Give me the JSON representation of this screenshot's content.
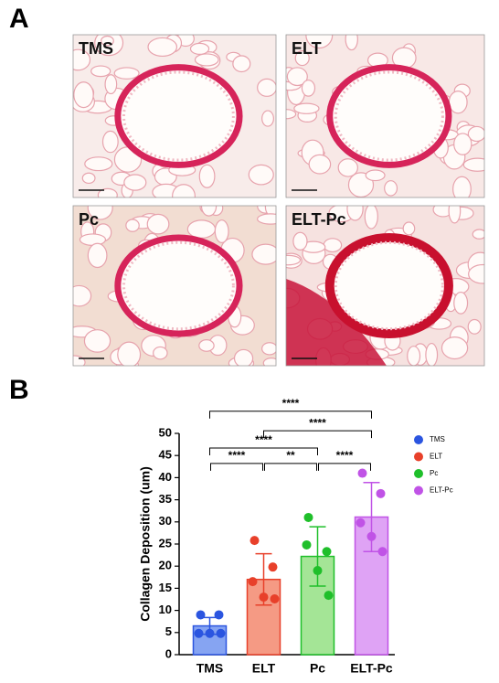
{
  "panel_labels": [
    "A",
    "B"
  ],
  "image_labels": [
    "TMS",
    "ELT",
    "Pc",
    "ELT-Pc"
  ],
  "chart_data": {
    "type": "bar",
    "ylabel": "Collagen Deposition (um)",
    "categories": [
      "TMS",
      "ELT",
      "Pc",
      "ELT-Pc"
    ],
    "values": [
      6.5,
      17,
      22.2,
      31.1
    ],
    "errors": [
      1.9,
      5.8,
      6.7,
      7.8
    ],
    "points": [
      [
        9,
        9,
        4.8,
        4.8,
        4.8
      ],
      [
        25.8,
        19.8,
        16.5,
        13,
        12.6
      ],
      [
        31,
        23.3,
        24.8,
        19,
        13.4
      ],
      [
        41,
        36.4,
        29.8,
        26.7,
        23.3
      ]
    ],
    "colors": [
      "#2b55e0",
      "#e8402a",
      "#1fbf2a",
      "#c053e6"
    ],
    "fill_colors": [
      "#86a4f2",
      "#f59a84",
      "#a4e596",
      "#dfa3f5"
    ],
    "ylim": [
      0,
      50
    ],
    "yticks": [
      0,
      5,
      10,
      15,
      20,
      25,
      30,
      35,
      40,
      45,
      50
    ],
    "comparisons": [
      {
        "groups": [
          0,
          3
        ],
        "label": "****",
        "y": 55
      },
      {
        "groups": [
          1,
          3
        ],
        "label": "****",
        "y": 50.6
      },
      {
        "groups": [
          0,
          2
        ],
        "label": "****",
        "y": 46.7
      },
      {
        "groups": [
          0,
          1
        ],
        "label": "****",
        "y": 43.2
      },
      {
        "groups": [
          1,
          2
        ],
        "label": "**",
        "y": 43.2
      },
      {
        "groups": [
          2,
          3
        ],
        "label": "****",
        "y": 43.2
      }
    ]
  }
}
